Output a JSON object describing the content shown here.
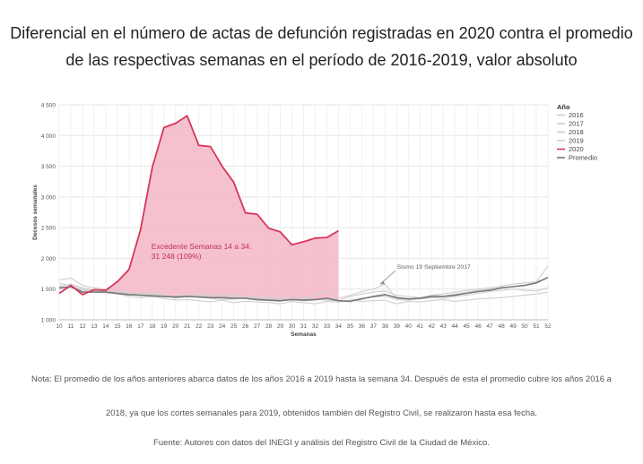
{
  "title_line1": "Diferencial en el número de actas de defunción registradas en 2020 contra el promedio",
  "title_line2": "de las respectivas semanas en el período de 2016-2019, valor absoluto",
  "note_line1": "Nota: El promedio de los años anteriores abarca datos de los años 2016 a 2019 hasta la semana 34. Después de esta el promedio cubre los años 2016 a",
  "note_line2": "2018, ya que los cortes semanales para 2019, obtenidos también del Registro Civil, se realizaron hasta esa fecha.",
  "source": "Fuente: Autores con datos del INEGI y análisis del Registro Civil de la Ciudad de México.",
  "colors": {
    "y2020": "#d6365a",
    "fill": "#f4b6c7",
    "promedio": "#777777",
    "grey_years": "#cfcfcf",
    "grid": "#e6e6e6",
    "annotation": "#c0304f"
  },
  "chart_data": {
    "type": "line",
    "xlabel": "Semanas",
    "ylabel": "Decesos semanales",
    "ylim": [
      1000,
      4500
    ],
    "yticks": [
      1000,
      1500,
      2000,
      2500,
      3000,
      3500,
      4000,
      4500
    ],
    "ytick_labels": [
      "1 000",
      "1 500",
      "2 000",
      "2 500",
      "3 000",
      "3 500",
      "4 000",
      "4 500"
    ],
    "x": [
      10,
      11,
      12,
      13,
      14,
      15,
      16,
      17,
      18,
      19,
      20,
      21,
      22,
      23,
      24,
      25,
      26,
      27,
      28,
      29,
      30,
      31,
      32,
      33,
      34,
      35,
      36,
      37,
      38,
      39,
      40,
      41,
      42,
      43,
      44,
      45,
      46,
      47,
      48,
      49,
      50,
      51,
      52
    ],
    "legend_title": "Año",
    "legend_position": "right",
    "series": [
      {
        "name": "2016",
        "values": [
          1650,
          1680,
          1560,
          1520,
          1500,
          1470,
          1440,
          1430,
          1410,
          1390,
          1380,
          1380,
          1390,
          1400,
          1420,
          1380,
          1360,
          1370,
          1340,
          1330,
          1320,
          1340,
          1330,
          1320,
          1310,
          1380,
          1420,
          1450,
          1470,
          1400,
          1380,
          1360,
          1400,
          1420,
          1450,
          1480,
          1500,
          1520,
          1550,
          1580,
          1600,
          1620,
          1680
        ]
      },
      {
        "name": "2017",
        "values": [
          1550,
          1580,
          1520,
          1490,
          1460,
          1440,
          1430,
          1410,
          1420,
          1390,
          1380,
          1400,
          1370,
          1350,
          1330,
          1340,
          1350,
          1320,
          1310,
          1300,
          1330,
          1310,
          1320,
          1340,
          1350,
          1400,
          1460,
          1500,
          1580,
          1350,
          1330,
          1360,
          1400,
          1380,
          1420,
          1450,
          1480,
          1500,
          1520,
          1540,
          1560,
          1620,
          1870
        ]
      },
      {
        "name": "2018",
        "values": [
          1500,
          1530,
          1480,
          1460,
          1440,
          1420,
          1380,
          1360,
          1380,
          1350,
          1320,
          1330,
          1310,
          1290,
          1320,
          1280,
          1300,
          1290,
          1280,
          1260,
          1300,
          1280,
          1260,
          1300,
          1290,
          1320,
          1350,
          1370,
          1380,
          1330,
          1320,
          1340,
          1360,
          1350,
          1380,
          1400,
          1430,
          1460,
          1480,
          1500,
          1480,
          1470,
          1520
        ]
      },
      {
        "name": "2019",
        "values": [
          1600,
          1550,
          1500,
          1470,
          1450,
          1420,
          1400,
          1430,
          1450,
          1400,
          1350,
          1380,
          1420,
          1380,
          1360,
          1400,
          1380,
          1340,
          1370,
          1350,
          1390,
          1360,
          1400,
          1480,
          1300,
          1320,
          1300,
          1310,
          1320,
          1260,
          1300,
          1290,
          1310,
          1330,
          1300,
          1320,
          1340,
          1350,
          1360,
          1380,
          1400,
          1420,
          1450
        ]
      },
      {
        "name": "2020",
        "values": [
          1430,
          1560,
          1410,
          1490,
          1480,
          1620,
          1820,
          2470,
          3480,
          4130,
          4200,
          4320,
          3840,
          3820,
          3500,
          3240,
          2740,
          2720,
          2490,
          2430,
          2220,
          2270,
          2330,
          2340,
          2450,
          null,
          null,
          null,
          null,
          null,
          null,
          null,
          null,
          null,
          null,
          null,
          null,
          null,
          null,
          null,
          null,
          null,
          null
        ]
      },
      {
        "name": "Promedio",
        "values": [
          1520,
          1540,
          1450,
          1450,
          1450,
          1430,
          1410,
          1400,
          1390,
          1380,
          1370,
          1380,
          1370,
          1360,
          1360,
          1350,
          1350,
          1330,
          1320,
          1310,
          1330,
          1320,
          1330,
          1350,
          1310,
          1300,
          1340,
          1380,
          1410,
          1360,
          1340,
          1350,
          1380,
          1380,
          1400,
          1430,
          1460,
          1480,
          1520,
          1540,
          1560,
          1600,
          1690
        ]
      }
    ],
    "annotations": [
      {
        "text": "Excedente Semanas 14 a 34:",
        "x": 19,
        "y": 2150
      },
      {
        "text": "31 248 (109%)",
        "x": 19,
        "y": 1990
      },
      {
        "text": "Sismo 19 Septiembre 2017",
        "x": 39.5,
        "y": 1770
      }
    ],
    "excedente_range": [
      14,
      34
    ],
    "grid": true
  }
}
